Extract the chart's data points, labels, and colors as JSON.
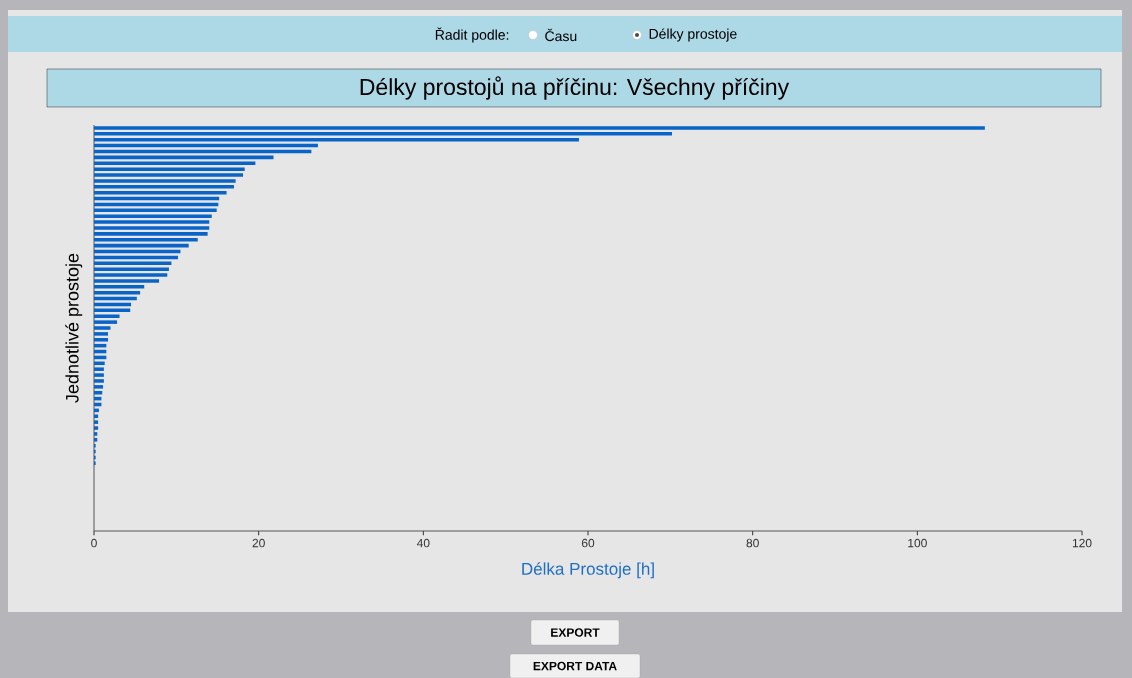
{
  "chart_data": {
    "type": "bar",
    "orientation": "horizontal",
    "title": "Délky prostojů na příčinu: Všechny příčiny",
    "xlabel": "Délka Prostoje [h]",
    "ylabel": "Jednotlivé prostoje",
    "annotations": [
      "Řadit podle:",
      "Času",
      "Délky prostoje",
      "EXPORT",
      "EXPORT DATA"
    ],
    "categories": [
      null,
      null,
      null,
      null,
      null,
      null,
      null,
      null,
      null,
      null,
      null,
      null,
      null,
      null,
      null,
      null,
      null,
      null,
      null,
      null,
      null,
      null,
      null,
      null,
      null,
      null,
      null,
      null,
      null,
      null,
      null,
      null,
      null,
      null,
      null,
      null,
      null,
      null,
      null,
      null,
      null,
      null,
      null,
      null,
      null,
      null,
      null,
      null,
      null,
      null,
      null,
      null,
      null,
      null,
      null,
      null,
      null,
      null,
      null,
      null,
      null,
      null,
      null,
      null,
      null,
      null,
      null,
      null,
      null
    ],
    "values": [
      108.2,
      70.2,
      58.9,
      27.2,
      26.4,
      21.8,
      19.6,
      18.3,
      18.1,
      17.2,
      17.0,
      16.1,
      15.2,
      15.1,
      14.9,
      14.3,
      14.0,
      14.0,
      13.8,
      12.6,
      11.5,
      10.5,
      10.2,
      9.4,
      9.1,
      8.9,
      7.9,
      6.1,
      5.6,
      5.2,
      4.5,
      4.4,
      3.1,
      2.8,
      2.0,
      1.7,
      1.7,
      1.5,
      1.5,
      1.5,
      1.3,
      1.2,
      1.2,
      1.2,
      1.1,
      1.0,
      0.9,
      0.9,
      0.6,
      0.5,
      0.5,
      0.5,
      0.4,
      0.4,
      0.2,
      0.2,
      0.2,
      0.2,
      0,
      0,
      0,
      0,
      0,
      0,
      0,
      0,
      0,
      0,
      0
    ],
    "color": "#0a64c8",
    "xlim": [
      0,
      120
    ],
    "xticks": [
      0,
      20,
      40,
      60,
      80,
      100,
      120
    ],
    "tick_labels": "x"
  }
}
